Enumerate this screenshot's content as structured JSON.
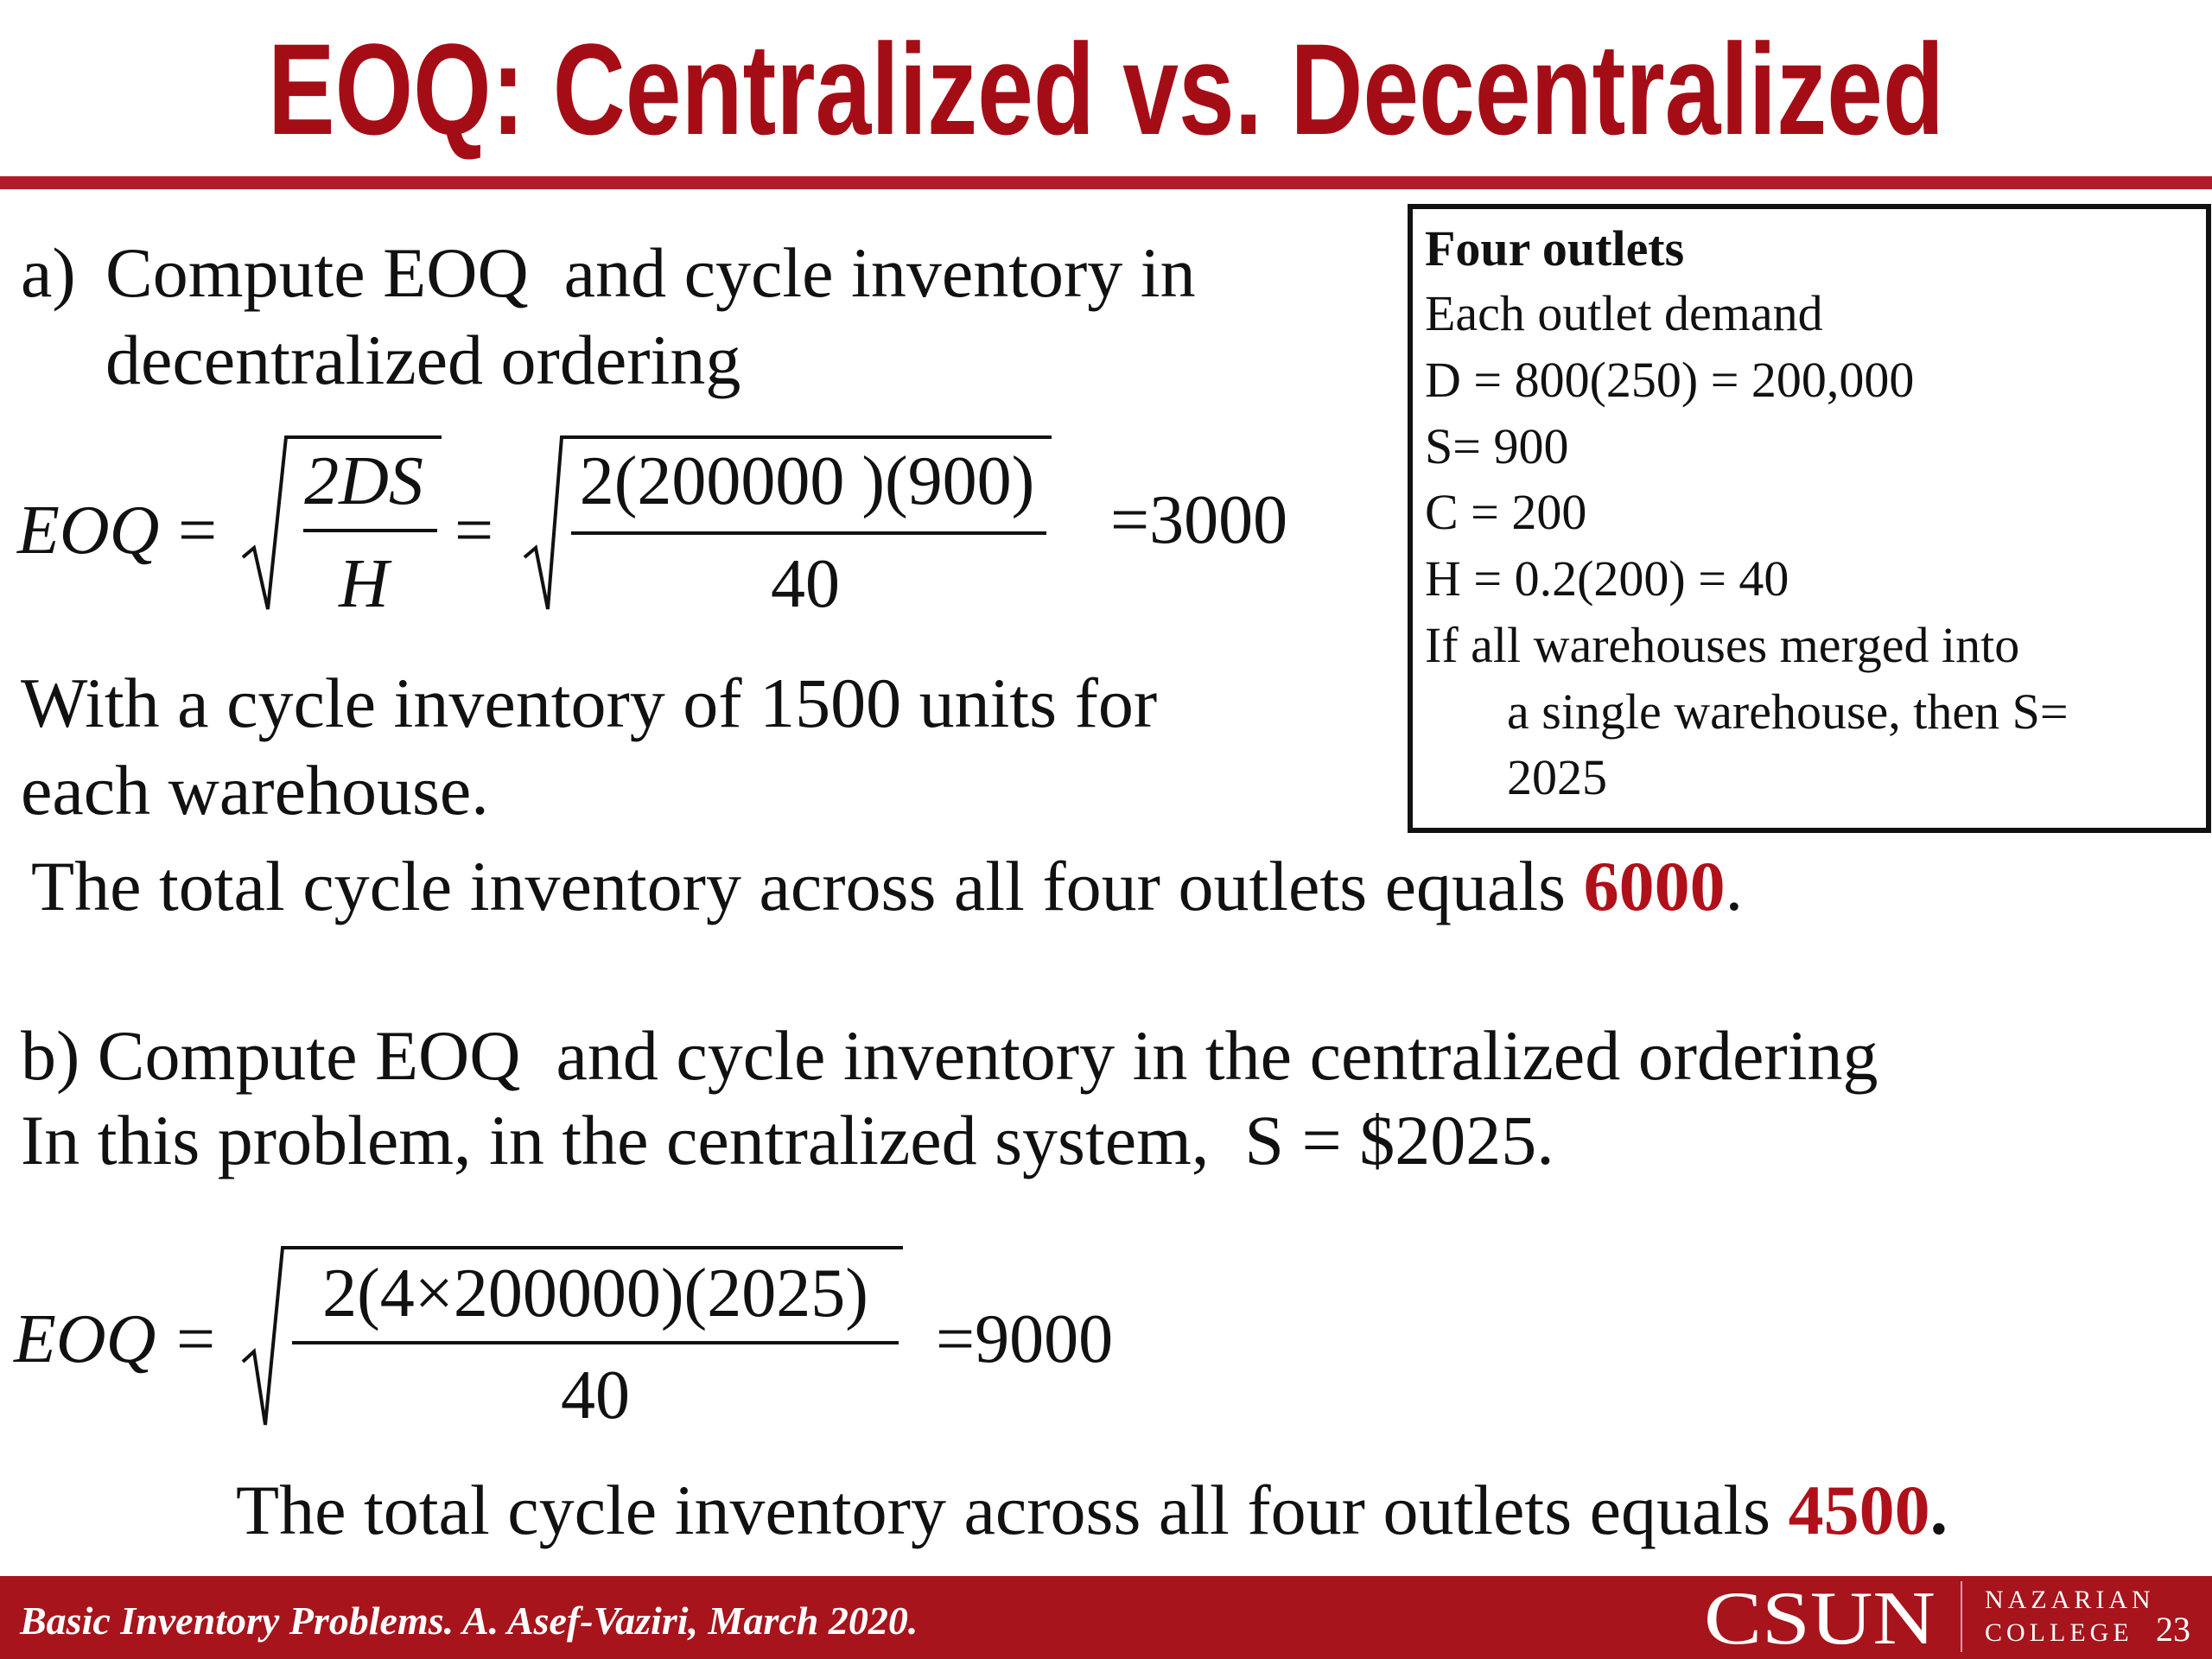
{
  "header": {
    "title": "EOQ: Centralized vs. Decentralized"
  },
  "part_a": {
    "label": "a)",
    "question": [
      "Compute EOQ  and cycle inventory in",
      "decentralized ordering"
    ],
    "formula": {
      "lhs": "EOQ",
      "equals": "=",
      "numerator": "2DS",
      "denominator": "H",
      "equals2": "=",
      "numerator2": "2(200000 )(900)",
      "denominator2": "40",
      "result": "=3000"
    },
    "note": [
      "With a cycle inventory of 1500 units for",
      "each warehouse."
    ],
    "total": {
      "text": "The total cycle inventory across all four outlets equals ",
      "value": "6000",
      "end": "."
    }
  },
  "info_box": {
    "title": "Four outlets",
    "lines": [
      "Each outlet demand",
      "D = 800(250) = 200,000",
      "S= 900",
      "C = 200",
      "H = 0.2(200) = 40",
      "If all warehouses merged into"
    ],
    "continuation": [
      "a single warehouse, then S=",
      "2025"
    ]
  },
  "part_b": {
    "question": [
      "b) Compute EOQ  and cycle inventory in the centralized ordering",
      "In this problem, in the centralized system,  S = $2025."
    ],
    "formula": {
      "lhs": "EOQ",
      "equals": "=",
      "numerator": "2(4×200000)(2025)",
      "denominator": "40",
      "result": "=9000"
    },
    "total": {
      "text": "The total cycle inventory across all four outlets equals ",
      "value": "4500",
      "end": "."
    }
  },
  "footer": {
    "citation": "Basic Inventory Problems. A. Asef-Vaziri, March 2020.",
    "logo": "CSUN",
    "college": [
      "NAZARIAN",
      "COLLEGE"
    ],
    "page": "23"
  }
}
